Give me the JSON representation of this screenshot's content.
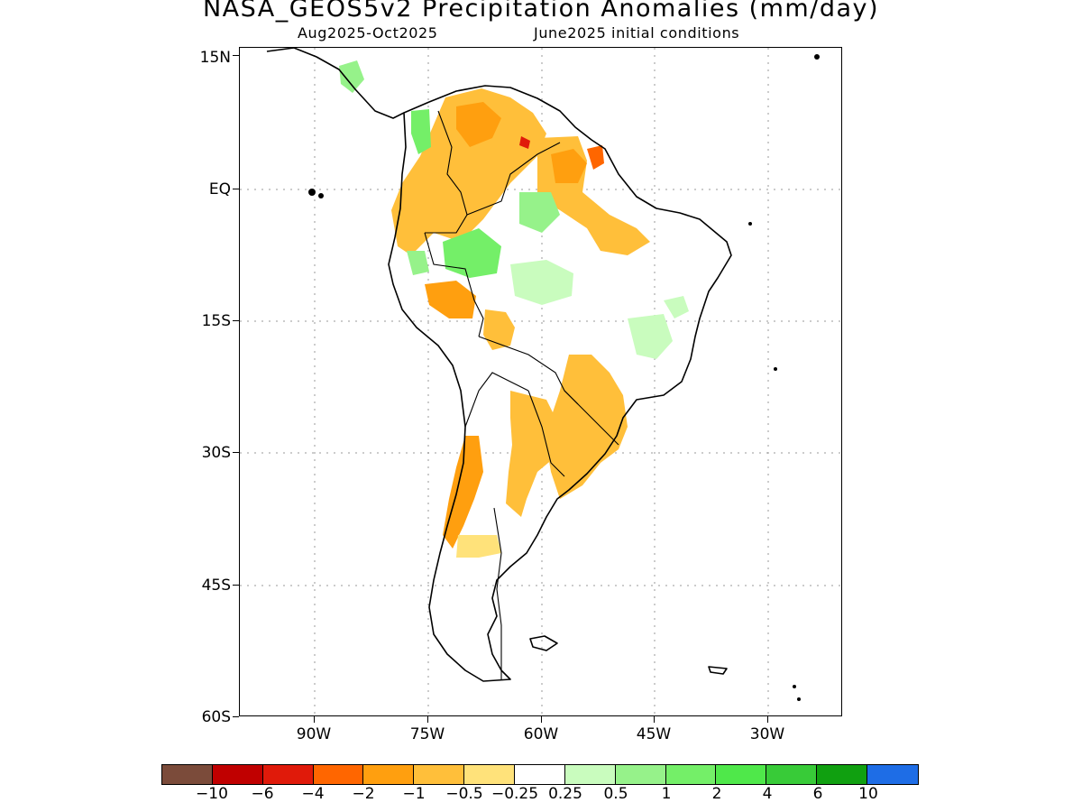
{
  "title": "NASA_GEOS5v2 Precipitation Anomalies (mm/day)",
  "subtitle_left": "Aug2025-Oct2025",
  "subtitle_right": "June2025 initial conditions",
  "map": {
    "lat_labels": [
      "15N",
      "EQ",
      "15S",
      "30S",
      "45S",
      "60S"
    ],
    "lon_labels": [
      "90W",
      "75W",
      "60W",
      "45W",
      "30W"
    ],
    "gridlines": "dotted"
  },
  "colorbar": {
    "colors": [
      "#7b4b3a",
      "#c00000",
      "#e01a0a",
      "#ff6600",
      "#ff9f0f",
      "#ffbf3a",
      "#ffe27a",
      "#ffffff",
      "#c9fcbe",
      "#96f28a",
      "#74ef68",
      "#4fe84a",
      "#38cb38",
      "#10a010",
      "#1e6de6"
    ],
    "labels": [
      "−10",
      "−6",
      "−4",
      "−2",
      "−1",
      "−0.5",
      "−0.25",
      "0.25",
      "0.5",
      "1",
      "2",
      "4",
      "6",
      "10"
    ]
  }
}
